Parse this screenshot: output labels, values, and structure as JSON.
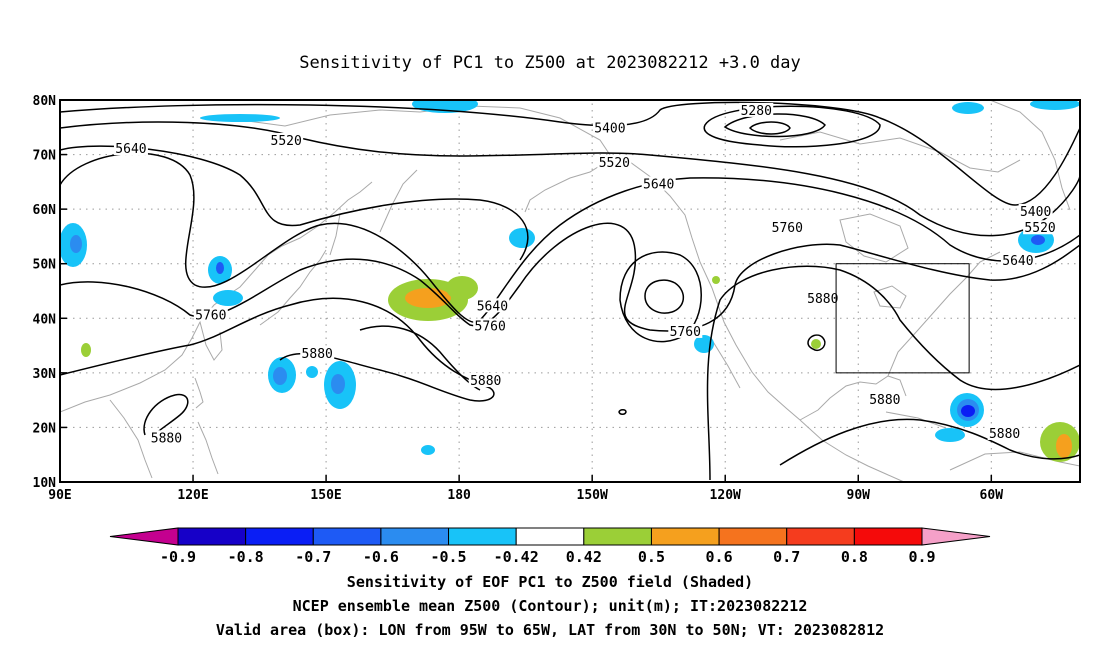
{
  "chart_data": {
    "type": "heatmap",
    "title": "Sensitivity of PC1 to Z500 at 2023082212 +3.0 day",
    "x_axis": {
      "ticks": [
        "90E",
        "120E",
        "150E",
        "180",
        "150W",
        "120W",
        "90W",
        "60W"
      ],
      "range_lon": [
        90,
        320
      ]
    },
    "y_axis": {
      "ticks": [
        "10N",
        "20N",
        "30N",
        "40N",
        "50N",
        "60N",
        "70N",
        "80N"
      ],
      "range_lat": [
        10,
        80
      ]
    },
    "grid": true,
    "colorbar": {
      "ticks": [
        "-0.9",
        "-0.8",
        "-0.7",
        "-0.6",
        "-0.5",
        "-0.42",
        "0.42",
        "0.5",
        "0.6",
        "0.7",
        "0.8",
        "0.9"
      ],
      "colors": [
        "#c4008f",
        "#1600c8",
        "#0a1ef5",
        "#1e5af5",
        "#2b8cf0",
        "#18c3f8",
        "#ffffff",
        "#9bcf37",
        "#f5a01e",
        "#f5731e",
        "#f53c1e",
        "#f50a0a",
        "#f5a0c8"
      ]
    },
    "contour_labels": [
      {
        "text": "5280",
        "lon": 247,
        "lat": 78
      },
      {
        "text": "5400",
        "lon": 214,
        "lat": 74.8
      },
      {
        "text": "5400",
        "lon": 310,
        "lat": 59.5
      },
      {
        "text": "5520",
        "lon": 141,
        "lat": 72.5
      },
      {
        "text": "5520",
        "lon": 215,
        "lat": 68.5
      },
      {
        "text": "5520",
        "lon": 311,
        "lat": 56.5
      },
      {
        "text": "5640",
        "lon": 106,
        "lat": 71
      },
      {
        "text": "5640",
        "lon": 225,
        "lat": 64.5
      },
      {
        "text": "5640",
        "lon": 187.5,
        "lat": 42.2
      },
      {
        "text": "5640",
        "lon": 306,
        "lat": 50.5
      },
      {
        "text": "5760",
        "lon": 254,
        "lat": 56.5
      },
      {
        "text": "5760",
        "lon": 124,
        "lat": 40.5
      },
      {
        "text": "5760",
        "lon": 187,
        "lat": 38.5
      },
      {
        "text": "5760",
        "lon": 231,
        "lat": 37.5
      },
      {
        "text": "5880",
        "lon": 262,
        "lat": 43.5
      },
      {
        "text": "5880",
        "lon": 148,
        "lat": 33.5
      },
      {
        "text": "5880",
        "lon": 186,
        "lat": 28.5
      },
      {
        "text": "5880",
        "lon": 114,
        "lat": 18
      },
      {
        "text": "5880",
        "lon": 276,
        "lat": 25
      },
      {
        "text": "5880",
        "lon": 303,
        "lat": 18.8
      }
    ],
    "valid_area_box": {
      "lon": [
        265,
        295
      ],
      "lat": [
        30,
        50
      ]
    },
    "shaded_regions": [
      {
        "name": "central-pacific-positive",
        "sign": "positive",
        "max_value": 0.6,
        "lon": 175,
        "lat": 42
      },
      {
        "name": "central-pacific-positive-east",
        "sign": "positive",
        "max_value": 0.5,
        "lon": 182,
        "lat": 43
      },
      {
        "name": "atlantic-positive",
        "sign": "positive",
        "max_value": 0.6,
        "lon": 316,
        "lat": 17
      },
      {
        "name": "bay-of-bengal-negative",
        "sign": "negative",
        "min_value": -0.6,
        "lon": 93,
        "lat": 53
      },
      {
        "name": "japan-negative",
        "sign": "negative",
        "min_value": -0.6,
        "lon": 129,
        "lat": 47
      },
      {
        "name": "kamchatka-negative",
        "sign": "negative",
        "min_value": -0.5,
        "lon": 193,
        "lat": 50
      },
      {
        "name": "nw-pacific-negative",
        "sign": "negative",
        "min_value": -0.6,
        "lon": 142,
        "lat": 29
      },
      {
        "name": "nw-pacific-negative-2",
        "sign": "negative",
        "min_value": -0.6,
        "lon": 153,
        "lat": 27
      },
      {
        "name": "caribbean-negative",
        "sign": "negative",
        "min_value": -0.8,
        "lon": 298,
        "lat": 20
      },
      {
        "name": "labrador-negative",
        "sign": "negative",
        "min_value": -0.7,
        "lon": 308,
        "lat": 54
      },
      {
        "name": "arctic-negative",
        "sign": "negative",
        "min_value": -0.5,
        "lon": 178,
        "lat": 79
      }
    ]
  },
  "footer": {
    "line1": "Sensitivity of EOF PC1 to Z500 field (Shaded)",
    "line2": "NCEP ensemble mean Z500 (Contour); unit(m); IT:2023082212",
    "line3": "Valid area (box): LON from 95W to 65W, LAT from 30N to 50N; VT: 2023082812"
  }
}
